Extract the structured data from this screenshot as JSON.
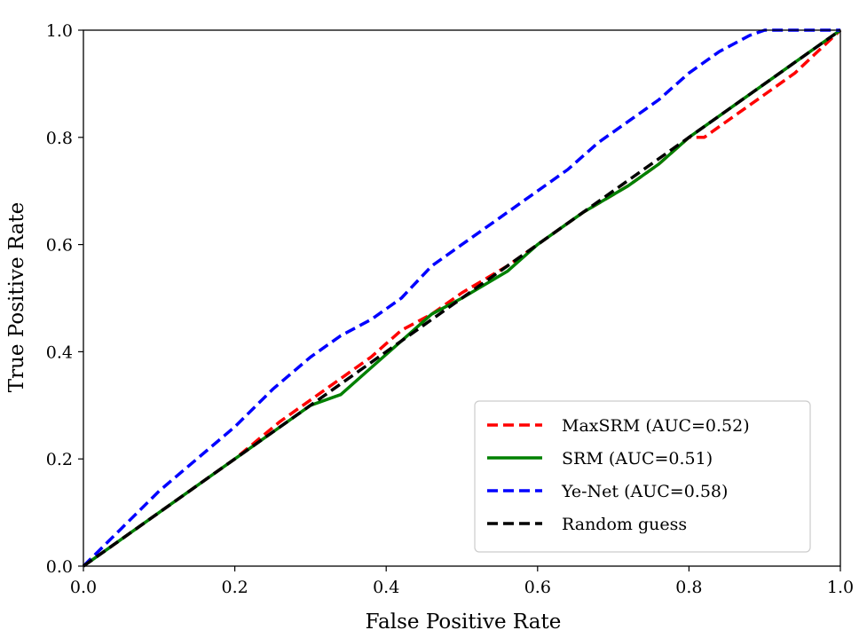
{
  "chart_data": {
    "type": "line",
    "title": "",
    "xlabel": "False Positive Rate",
    "ylabel": "True Positive Rate",
    "xlim": [
      0.0,
      1.0
    ],
    "ylim": [
      0.0,
      1.0
    ],
    "xticks": [
      "0.0",
      "0.2",
      "0.4",
      "0.6",
      "0.8",
      "1.0"
    ],
    "yticks": [
      "0.0",
      "0.2",
      "0.4",
      "0.6",
      "0.8",
      "1.0"
    ],
    "grid": false,
    "legend_position": "bottom-right",
    "series": [
      {
        "name": "MaxSRM (AUC=0.52)",
        "color": "#ff0000",
        "style": "dashed",
        "x": [
          0.0,
          0.1,
          0.2,
          0.26,
          0.3,
          0.34,
          0.38,
          0.42,
          0.46,
          0.5,
          0.56,
          0.6,
          0.66,
          0.72,
          0.76,
          0.8,
          0.82,
          0.86,
          0.9,
          0.94,
          1.0
        ],
        "y": [
          0.0,
          0.1,
          0.2,
          0.27,
          0.31,
          0.35,
          0.39,
          0.44,
          0.47,
          0.51,
          0.56,
          0.6,
          0.66,
          0.71,
          0.75,
          0.8,
          0.8,
          0.84,
          0.88,
          0.92,
          1.0
        ]
      },
      {
        "name": "SRM (AUC=0.51)",
        "color": "#008000",
        "style": "solid",
        "x": [
          0.0,
          0.1,
          0.2,
          0.26,
          0.3,
          0.34,
          0.38,
          0.42,
          0.46,
          0.5,
          0.56,
          0.6,
          0.66,
          0.72,
          0.76,
          0.8,
          0.86,
          0.9,
          0.94,
          1.0
        ],
        "y": [
          0.0,
          0.1,
          0.2,
          0.26,
          0.3,
          0.32,
          0.37,
          0.42,
          0.47,
          0.5,
          0.55,
          0.6,
          0.66,
          0.71,
          0.75,
          0.8,
          0.86,
          0.9,
          0.94,
          1.0
        ]
      },
      {
        "name": "Ye-Net (AUC=0.58)",
        "color": "#0000ff",
        "style": "dashed",
        "x": [
          0.0,
          0.05,
          0.1,
          0.15,
          0.2,
          0.25,
          0.3,
          0.34,
          0.38,
          0.42,
          0.46,
          0.5,
          0.55,
          0.6,
          0.64,
          0.68,
          0.72,
          0.76,
          0.8,
          0.84,
          0.88,
          0.9,
          1.0
        ],
        "y": [
          0.0,
          0.07,
          0.14,
          0.2,
          0.26,
          0.33,
          0.39,
          0.43,
          0.46,
          0.5,
          0.56,
          0.6,
          0.65,
          0.7,
          0.74,
          0.79,
          0.83,
          0.87,
          0.92,
          0.96,
          0.99,
          1.0,
          1.0
        ]
      },
      {
        "name": "Random guess",
        "color": "#000000",
        "style": "dashed",
        "x": [
          0.0,
          1.0
        ],
        "y": [
          0.0,
          1.0
        ]
      }
    ]
  }
}
